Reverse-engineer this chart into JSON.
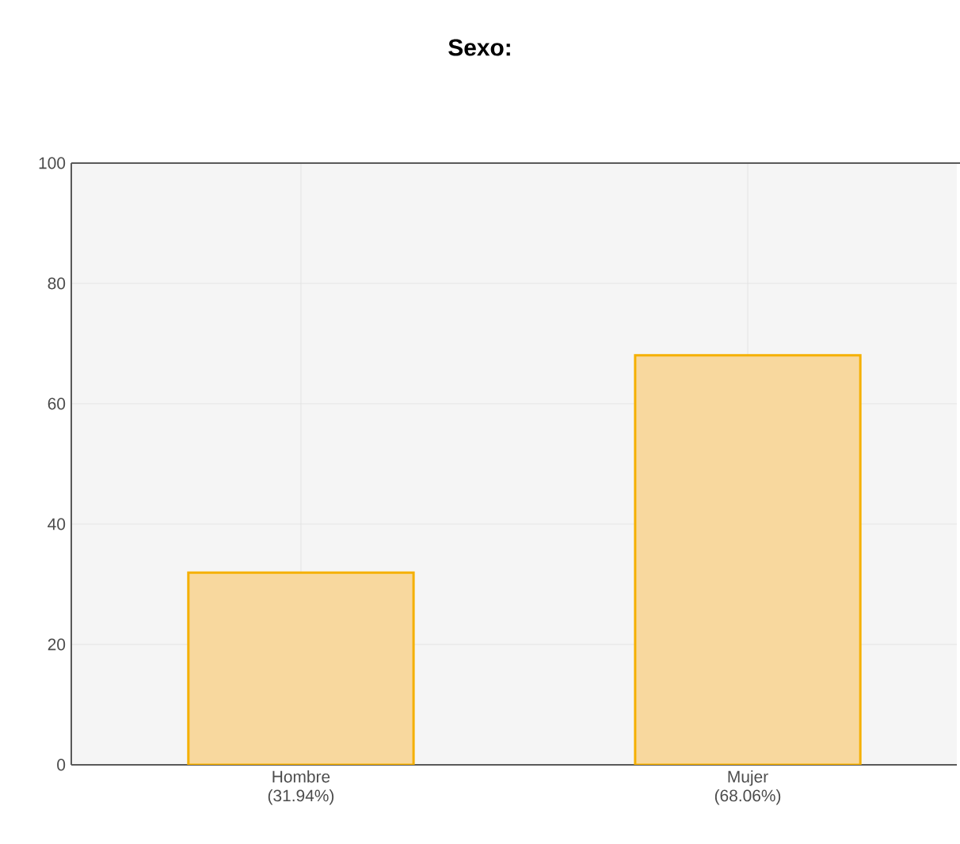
{
  "chart_data": {
    "type": "bar",
    "title": "Sexo:",
    "categories": [
      "Hombre (31.94%)",
      "Mujer (68.06%)"
    ],
    "values": [
      31.94,
      68.06
    ],
    "color": "#f8d89e",
    "ylim": [
      0,
      100
    ],
    "yticks": [
      0,
      20,
      40,
      60,
      80,
      100
    ],
    "grid": true
  }
}
